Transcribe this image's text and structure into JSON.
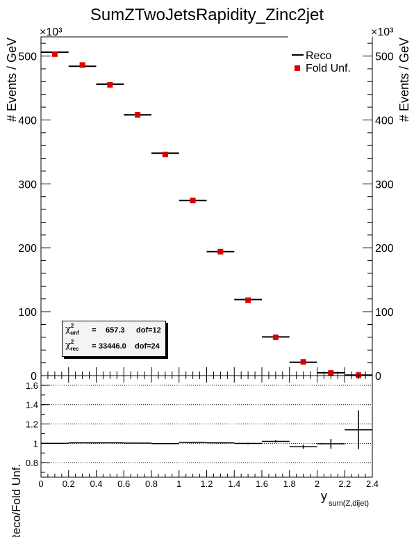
{
  "title": "SumZTwoJetsRapidity_Zinc2jet",
  "chart_data": [
    {
      "type": "scatter",
      "panel": "main",
      "ylabel": "# Events / GeV",
      "yexponent": "×10³",
      "ylim": [
        0,
        530000
      ],
      "xlim": [
        0,
        2.4
      ],
      "yticks": [
        {
          "v": 0,
          "label": "0"
        },
        {
          "v": 100000,
          "label": "100"
        },
        {
          "v": 200000,
          "label": "200"
        },
        {
          "v": 300000,
          "label": "300"
        },
        {
          "v": 400000,
          "label": "400"
        },
        {
          "v": 500000,
          "label": "500"
        }
      ],
      "legend_position": "top-right",
      "series": [
        {
          "name": "Reco",
          "style": "horizontal-bin-line",
          "color": "#000000",
          "bins": [
            [
              0.0,
              0.2
            ],
            [
              0.2,
              0.4
            ],
            [
              0.4,
              0.6
            ],
            [
              0.6,
              0.8
            ],
            [
              0.8,
              1.0
            ],
            [
              1.0,
              1.2
            ],
            [
              1.2,
              1.4
            ],
            [
              1.4,
              1.6
            ],
            [
              1.6,
              1.8
            ],
            [
              1.8,
              2.0
            ],
            [
              2.0,
              2.2
            ],
            [
              2.2,
              2.4
            ]
          ],
          "values": [
            506000,
            484000,
            456000,
            408000,
            348000,
            274000,
            194000,
            119000,
            60500,
            21000,
            4500,
            800
          ]
        },
        {
          "name": "Fold Unf.",
          "style": "square-marker",
          "color": "#dd0000",
          "x": [
            0.1,
            0.3,
            0.5,
            0.7,
            0.9,
            1.1,
            1.3,
            1.5,
            1.7,
            1.9,
            2.1,
            2.3
          ],
          "values": [
            503000,
            486000,
            455000,
            408000,
            346000,
            274000,
            194000,
            118000,
            60000,
            21500,
            4200,
            700
          ]
        }
      ],
      "stats": {
        "unf_label": "unf",
        "unf_chi2": "657.3",
        "unf_dof": "dof=12",
        "rec_label": "rec",
        "rec_chi2": "33446.0",
        "rec_dof": "dof=24"
      }
    },
    {
      "type": "scatter",
      "panel": "ratio",
      "ylabel": "Reco/Fold Unf.",
      "xlabel": "y",
      "xlabel_sub": "sum(Z,dijet)",
      "xlim": [
        0,
        2.4
      ],
      "ylim": [
        0.65,
        1.7
      ],
      "yticks": [
        {
          "v": 0.8,
          "label": "0.8"
        },
        {
          "v": 1.0,
          "label": "1"
        },
        {
          "v": 1.2,
          "label": "1.2"
        },
        {
          "v": 1.4,
          "label": "1.4"
        },
        {
          "v": 1.6,
          "label": "1.6"
        }
      ],
      "xticks": [
        {
          "v": 0,
          "label": "0"
        },
        {
          "v": 0.2,
          "label": "0.2"
        },
        {
          "v": 0.4,
          "label": "0.4"
        },
        {
          "v": 0.6,
          "label": "0.6"
        },
        {
          "v": 0.8,
          "label": "0.8"
        },
        {
          "v": 1.0,
          "label": "1"
        },
        {
          "v": 1.2,
          "label": "1.2"
        },
        {
          "v": 1.4,
          "label": "1.4"
        },
        {
          "v": 1.6,
          "label": "1.6"
        },
        {
          "v": 1.8,
          "label": "1.8"
        },
        {
          "v": 2.0,
          "label": "2"
        },
        {
          "v": 2.2,
          "label": "2.2"
        },
        {
          "v": 2.4,
          "label": "2.4"
        }
      ],
      "grid_lines": [
        0.8,
        1.0,
        1.2,
        1.4,
        1.6
      ],
      "bins": [
        [
          0.0,
          0.2
        ],
        [
          0.2,
          0.4
        ],
        [
          0.4,
          0.6
        ],
        [
          0.6,
          0.8
        ],
        [
          0.8,
          1.0
        ],
        [
          1.0,
          1.2
        ],
        [
          1.2,
          1.4
        ],
        [
          1.4,
          1.6
        ],
        [
          1.6,
          1.8
        ],
        [
          1.8,
          2.0
        ],
        [
          2.0,
          2.2
        ],
        [
          2.2,
          2.4
        ]
      ],
      "values": [
        1.0,
        1.005,
        1.005,
        1.002,
        0.997,
        1.01,
        1.005,
        0.999,
        1.02,
        0.965,
        0.995,
        1.14
      ],
      "errors": [
        0.002,
        0.002,
        0.002,
        0.003,
        0.003,
        0.004,
        0.005,
        0.008,
        0.012,
        0.02,
        0.05,
        0.2
      ]
    }
  ]
}
